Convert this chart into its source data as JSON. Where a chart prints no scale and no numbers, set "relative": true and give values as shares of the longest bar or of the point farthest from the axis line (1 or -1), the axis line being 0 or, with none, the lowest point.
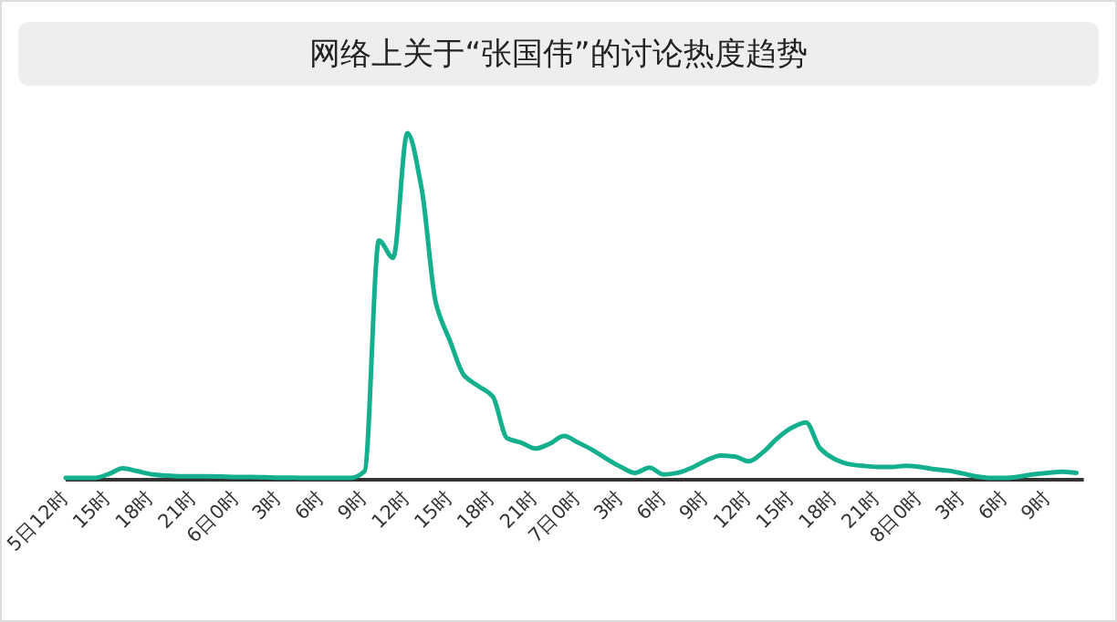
{
  "chart_data": {
    "type": "line",
    "title": "网络上关于“张国伟”的讨论热度趋势",
    "relative": true,
    "color": "#14b08e",
    "categories": [
      "5日12时",
      null,
      null,
      "15时",
      null,
      null,
      "18时",
      null,
      null,
      "21时",
      null,
      null,
      "6日0时",
      null,
      null,
      "3时",
      null,
      null,
      "6时",
      null,
      null,
      "9时",
      null,
      null,
      "12时",
      null,
      null,
      "15时",
      null,
      null,
      "18时",
      null,
      null,
      "21时",
      null,
      null,
      "7日0时",
      null,
      null,
      "3时",
      null,
      null,
      "6时",
      null,
      null,
      "9时",
      null,
      null,
      "12时",
      null,
      null,
      "15时",
      null,
      null,
      "18时",
      null,
      null,
      "21时",
      null,
      null,
      "8日0时",
      null,
      null,
      "3时",
      null,
      null,
      "6时",
      null,
      null,
      "9时",
      null,
      null
    ],
    "values": [
      0.005,
      0.005,
      0.005,
      0.016,
      0.033,
      0.025,
      0.016,
      0.012,
      0.01,
      0.01,
      0.01,
      0.009,
      0.008,
      0.008,
      0.007,
      0.006,
      0.006,
      0.005,
      0.005,
      0.005,
      0.005,
      0.025,
      0.69,
      0.64,
      1.0,
      0.84,
      0.51,
      0.4,
      0.3,
      0.27,
      0.24,
      0.12,
      0.107,
      0.09,
      0.104,
      0.126,
      0.107,
      0.086,
      0.06,
      0.037,
      0.02,
      0.035,
      0.015,
      0.02,
      0.035,
      0.056,
      0.07,
      0.067,
      0.053,
      0.08,
      0.12,
      0.15,
      0.165,
      0.09,
      0.06,
      0.045,
      0.04,
      0.037,
      0.037,
      0.04,
      0.037,
      0.03,
      0.026,
      0.018,
      0.009,
      0.005,
      0.005,
      0.009,
      0.016,
      0.02,
      0.023,
      0.02
    ]
  }
}
